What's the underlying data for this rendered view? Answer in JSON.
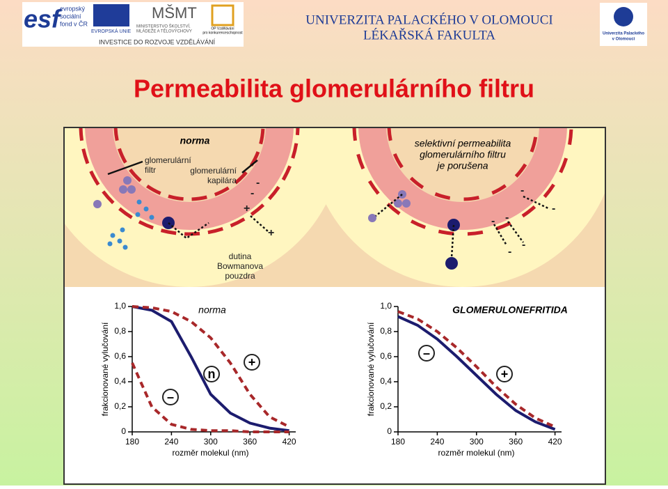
{
  "header": {
    "logos": [
      "esf",
      "evropský",
      "sociální",
      "fond v ČR",
      "EVROPSKÁ UNIE",
      "MŠMT",
      "MINISTERSTVO ŠKOLSTVÍ,",
      "MLÁDEŽE A TĚLOVÝCHOVY",
      "OP Vzdělávání",
      "pro konkurenceschopnost",
      "INVESTICE DO ROZVOJE VZDĚLÁVÁNÍ"
    ],
    "university": "UNIVERZITA PALACKÉHO V OLOMOUCI",
    "faculty": "LÉKAŘSKÁ FAKULTA",
    "upol": [
      "Univerzita Palackého",
      "v Olomouci"
    ]
  },
  "title": "Permeabilita glomerulárního filtru",
  "diagrams": [
    {
      "title": "norma",
      "filter": [
        "glomerulární",
        "filtr"
      ],
      "capillary": [
        "glomerulární",
        "kapilára"
      ],
      "cavity": [
        "dutina",
        "Bowmanova",
        "pouzdra"
      ]
    },
    {
      "title": [
        "selektivní permeabilita",
        "glomerulárního filtru",
        "je porušena"
      ]
    }
  ],
  "charts": [
    {
      "title": "norma",
      "ylabel": "frakcionované vylučování",
      "xlabel": "rozměr molekul (nm)",
      "xlim": [
        180,
        430
      ],
      "ylim": [
        0,
        1.0
      ],
      "xticks": [
        180,
        240,
        300,
        360,
        420
      ],
      "yticks": [
        0,
        {
          "value": 0.2,
          "label": "0,2"
        },
        {
          "value": 0.4,
          "label": "0,4"
        },
        {
          "value": 0.6,
          "label": "0,6"
        },
        {
          "value": 0.8,
          "label": "0,8"
        },
        {
          "value": 1.0,
          "label": "1,0"
        }
      ],
      "x": [
        180,
        210,
        240,
        270,
        300,
        330,
        360,
        390,
        420
      ],
      "series": [
        {
          "color": "#1c1c6e",
          "dash": false,
          "values": [
            1.0,
            0.97,
            0.88,
            0.6,
            0.3,
            0.15,
            0.07,
            0.03,
            0.01
          ]
        },
        {
          "color": "#a8282a",
          "dash": true,
          "values": [
            1.0,
            0.99,
            0.96,
            0.88,
            0.75,
            0.55,
            0.3,
            0.12,
            0.04
          ]
        },
        {
          "color": "#a8282a",
          "dash": true,
          "values": [
            0.55,
            0.2,
            0.06,
            0.02,
            0.01,
            0.01,
            0,
            0,
            0
          ]
        }
      ],
      "symbols": [
        "n",
        "–",
        "+"
      ]
    },
    {
      "title": "GLOMERULONEFRITIDA",
      "ylabel": "frakcionované vylučování",
      "xlabel": "rozměr molekul (nm)",
      "xlim": [
        180,
        430
      ],
      "ylim": [
        0,
        1.0
      ],
      "xticks": [
        180,
        240,
        300,
        360,
        420
      ],
      "yticks": [
        0,
        {
          "value": 0.2,
          "label": "0,2"
        },
        {
          "value": 0.4,
          "label": "0,4"
        },
        {
          "value": 0.6,
          "label": "0,6"
        },
        {
          "value": 0.8,
          "label": "0,8"
        },
        {
          "value": 1.0,
          "label": "1,0"
        }
      ],
      "x": [
        180,
        210,
        240,
        270,
        300,
        330,
        360,
        390,
        420
      ],
      "series": [
        {
          "color": "#1c1c6e",
          "dash": false,
          "values": [
            0.92,
            0.85,
            0.74,
            0.6,
            0.45,
            0.3,
            0.17,
            0.08,
            0.02
          ]
        },
        {
          "color": "#a8282a",
          "dash": true,
          "values": [
            0.96,
            0.9,
            0.8,
            0.67,
            0.52,
            0.36,
            0.22,
            0.11,
            0.04
          ]
        }
      ],
      "symbols": [
        "–",
        "+"
      ]
    }
  ]
}
